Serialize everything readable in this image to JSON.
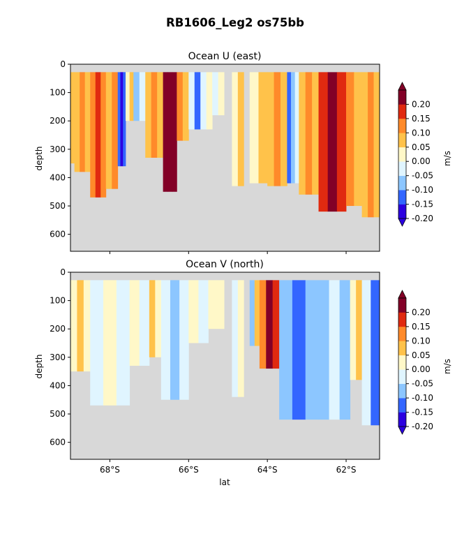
{
  "figure": {
    "suptitle": "RB1606_Leg2 os75bb"
  },
  "chart_data": [
    {
      "type": "heatmap",
      "title": "Ocean U (east)",
      "xlabel": "",
      "ylabel": "depth",
      "xlim": [
        -69.0,
        -61.15
      ],
      "ylim": [
        660,
        0
      ],
      "yticks": [
        0,
        100,
        200,
        300,
        400,
        500,
        600
      ],
      "colorbar": {
        "label": "m/s",
        "levels": [
          -0.2,
          -0.15,
          -0.1,
          -0.05,
          0.0,
          0.05,
          0.1,
          0.15,
          0.2
        ],
        "tick_labels": [
          "-0.20",
          "-0.15",
          "-0.10",
          "-0.05",
          "0.00",
          "0.05",
          "0.10",
          "0.15",
          "0.20"
        ],
        "colors": [
          "#2b00e0",
          "#3366ff",
          "#8cc6ff",
          "#e0f5ff",
          "#fff8c8",
          "#ffc24a",
          "#ff8a2a",
          "#e02a10",
          "#820027"
        ],
        "under": "#2b00e0",
        "over": "#820027",
        "nodata": "#d8d8d8"
      },
      "segments": [
        {
          "x0": -69.0,
          "x1": -68.9,
          "bottom": 350,
          "values": [
            0.075,
            0.075
          ]
        },
        {
          "x0": -68.9,
          "x1": -68.5,
          "bottom": 380,
          "values": [
            0.075,
            0.125,
            0.075
          ]
        },
        {
          "x0": -68.5,
          "x1": -68.1,
          "bottom": 470,
          "values": [
            0.125,
            0.175,
            0.125
          ]
        },
        {
          "x0": -68.1,
          "x1": -67.8,
          "bottom": 440,
          "values": [
            0.075,
            0.125
          ]
        },
        {
          "x0": -67.8,
          "x1": -67.6,
          "bottom": 360,
          "values": [
            -0.125,
            -0.175,
            -0.125
          ]
        },
        {
          "x0": -67.6,
          "x1": -67.4,
          "bottom": 200,
          "values": [
            0.025,
            0.075
          ]
        },
        {
          "x0": -67.4,
          "x1": -67.1,
          "bottom": 200,
          "values": [
            -0.075,
            -0.025
          ]
        },
        {
          "x0": -67.1,
          "x1": -66.65,
          "bottom": 330,
          "values": [
            0.075,
            0.125,
            0.075
          ]
        },
        {
          "x0": -66.65,
          "x1": -66.3,
          "bottom": 450,
          "values": [
            0.22,
            0.22,
            0.22
          ]
        },
        {
          "x0": -66.3,
          "x1": -66.0,
          "bottom": 270,
          "values": [
            0.125,
            0.075
          ]
        },
        {
          "x0": -66.0,
          "x1": -65.4,
          "bottom": 230,
          "values": [
            -0.025,
            -0.125,
            -0.025,
            0.025
          ]
        },
        {
          "x0": -65.4,
          "x1": -65.1,
          "bottom": 180,
          "values": [
            -0.025,
            0.025
          ]
        },
        {
          "x0": -64.9,
          "x1": -64.6,
          "bottom": 430,
          "values": [
            0.025,
            0.075
          ]
        },
        {
          "x0": -64.45,
          "x1": -64.0,
          "bottom": 420,
          "values": [
            0.025,
            0.075
          ]
        },
        {
          "x0": -64.0,
          "x1": -63.5,
          "bottom": 430,
          "values": [
            0.075,
            0.125,
            0.075
          ]
        },
        {
          "x0": -63.5,
          "x1": -63.2,
          "bottom": 420,
          "values": [
            -0.125,
            -0.075,
            -0.025
          ]
        },
        {
          "x0": -63.2,
          "x1": -62.7,
          "bottom": 460,
          "values": [
            0.075,
            0.125,
            0.075
          ]
        },
        {
          "x0": -62.7,
          "x1": -62.0,
          "bottom": 520,
          "values": [
            0.175,
            0.22,
            0.175
          ]
        },
        {
          "x0": -62.0,
          "x1": -61.6,
          "bottom": 500,
          "values": [
            0.125,
            0.075
          ]
        },
        {
          "x0": -61.6,
          "x1": -61.15,
          "bottom": 540,
          "values": [
            0.075,
            0.125,
            0.075
          ]
        }
      ]
    },
    {
      "type": "heatmap",
      "title": "Ocean V (north)",
      "xlabel": "lat",
      "ylabel": "depth",
      "xlim": [
        -69.0,
        -61.15
      ],
      "ylim": [
        660,
        0
      ],
      "xticks": [
        -68,
        -66,
        -64,
        -62
      ],
      "xtick_labels": [
        "68°S",
        "66°S",
        "64°S",
        "62°S"
      ],
      "yticks": [
        0,
        100,
        200,
        300,
        400,
        500,
        600
      ],
      "colorbar": {
        "label": "m/s",
        "levels": [
          -0.2,
          -0.15,
          -0.1,
          -0.05,
          0.0,
          0.05,
          0.1,
          0.15,
          0.2
        ],
        "tick_labels": [
          "-0.20",
          "-0.15",
          "-0.10",
          "-0.05",
          "0.00",
          "0.05",
          "0.10",
          "0.15",
          "0.20"
        ],
        "colors": [
          "#2b00e0",
          "#3366ff",
          "#8cc6ff",
          "#e0f5ff",
          "#fff8c8",
          "#ffc24a",
          "#ff8a2a",
          "#e02a10",
          "#820027"
        ],
        "under": "#2b00e0",
        "over": "#820027",
        "nodata": "#d8d8d8"
      },
      "segments": [
        {
          "x0": -69.0,
          "x1": -68.5,
          "bottom": 350,
          "values": [
            0.025,
            0.075,
            0.025
          ]
        },
        {
          "x0": -68.5,
          "x1": -67.5,
          "bottom": 470,
          "values": [
            -0.025,
            0.025,
            -0.025
          ]
        },
        {
          "x0": -67.5,
          "x1": -67.0,
          "bottom": 330,
          "values": [
            0.025,
            -0.025
          ]
        },
        {
          "x0": -67.0,
          "x1": -66.7,
          "bottom": 300,
          "values": [
            0.075,
            0.025
          ]
        },
        {
          "x0": -66.7,
          "x1": -66.0,
          "bottom": 450,
          "values": [
            -0.025,
            -0.075,
            -0.025
          ]
        },
        {
          "x0": -66.0,
          "x1": -65.5,
          "bottom": 250,
          "values": [
            0.025,
            -0.025
          ]
        },
        {
          "x0": -65.5,
          "x1": -65.1,
          "bottom": 200,
          "values": [
            0.025,
            0.025
          ]
        },
        {
          "x0": -64.9,
          "x1": -64.6,
          "bottom": 440,
          "values": [
            -0.025,
            0.025
          ]
        },
        {
          "x0": -64.45,
          "x1": -64.2,
          "bottom": 260,
          "values": [
            -0.075,
            0.075
          ]
        },
        {
          "x0": -64.2,
          "x1": -63.7,
          "bottom": 340,
          "values": [
            0.125,
            0.22,
            0.175
          ]
        },
        {
          "x0": -63.7,
          "x1": -62.7,
          "bottom": 520,
          "values": [
            -0.075,
            -0.125,
            -0.075
          ]
        },
        {
          "x0": -62.7,
          "x1": -61.9,
          "bottom": 520,
          "values": [
            -0.075,
            -0.025,
            -0.075
          ]
        },
        {
          "x0": -61.9,
          "x1": -61.6,
          "bottom": 380,
          "values": [
            0.025,
            0.075
          ]
        },
        {
          "x0": -61.6,
          "x1": -61.15,
          "bottom": 540,
          "values": [
            -0.025,
            -0.125
          ]
        }
      ]
    }
  ]
}
